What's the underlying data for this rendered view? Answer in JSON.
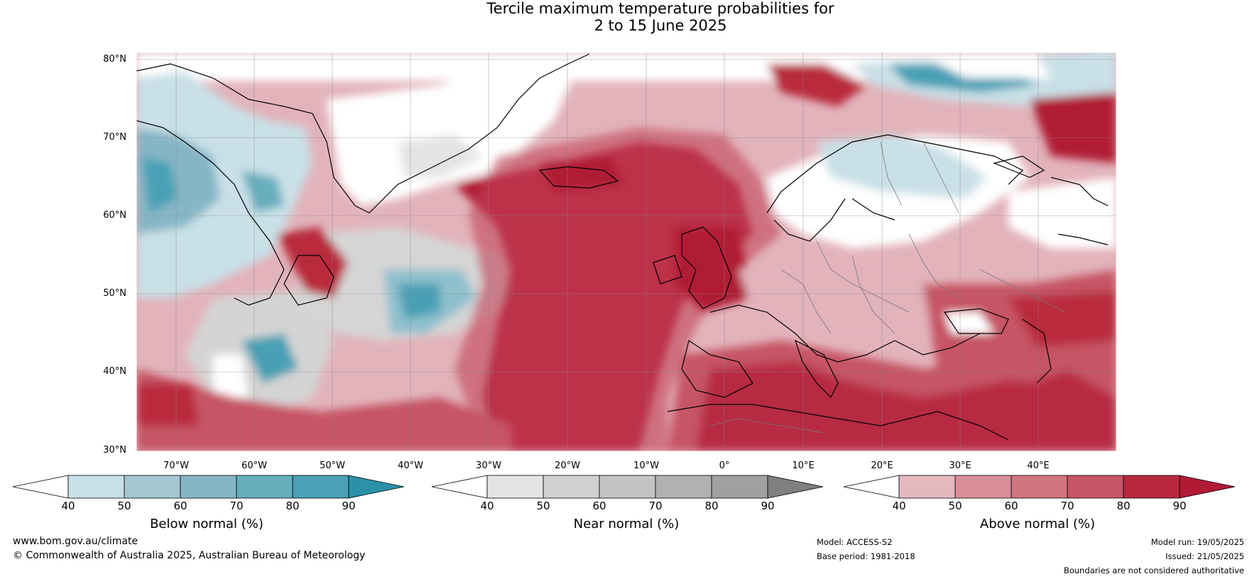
{
  "title": {
    "line1": "Tercile maximum temperature probabilities for",
    "line2": "2 to 15 June 2025"
  },
  "map": {
    "latitudes": [
      "80°N",
      "70°N",
      "60°N",
      "50°N",
      "40°N",
      "30°N"
    ],
    "longitudes": [
      "70°W",
      "60°W",
      "50°W",
      "40°W",
      "30°W",
      "20°W",
      "10°W",
      "0°",
      "10°E",
      "20°E",
      "30°E",
      "40°E"
    ]
  },
  "colorbars": [
    {
      "title": "Below normal (%)",
      "ticks": [
        "40",
        "50",
        "60",
        "70",
        "80",
        "90"
      ],
      "colors": [
        "#ffffff",
        "#c8e1e8",
        "#a3c6d0",
        "#86b6c6",
        "#67aebd",
        "#4aa0b5",
        "#2c91a8"
      ]
    },
    {
      "title": "Near normal (%)",
      "ticks": [
        "40",
        "50",
        "60",
        "70",
        "80",
        "90"
      ],
      "colors": [
        "#ffffff",
        "#e4e4e4",
        "#d0d0d0",
        "#c3c3c3",
        "#b1b1b1",
        "#a0a0a0",
        "#808080"
      ]
    },
    {
      "title": "Above normal (%)",
      "ticks": [
        "40",
        "50",
        "60",
        "70",
        "80",
        "90"
      ],
      "colors": [
        "#ffffff",
        "#e5b8bf",
        "#d98f99",
        "#cf7580",
        "#c65565",
        "#b9293e",
        "#b11a35"
      ]
    }
  ],
  "footer": {
    "site": "www.bom.gov.au/climate",
    "copyright": "© Commonwealth of Australia 2025, Australian Bureau of Meteorology",
    "model": "Model: ACCESS-S2",
    "base_period": "Base period: 1981-2018",
    "model_run": "Model run: 19/05/2025",
    "issued": "Issued: 21/05/2025",
    "disclaimer": "Boundaries are not considered authoritative"
  }
}
